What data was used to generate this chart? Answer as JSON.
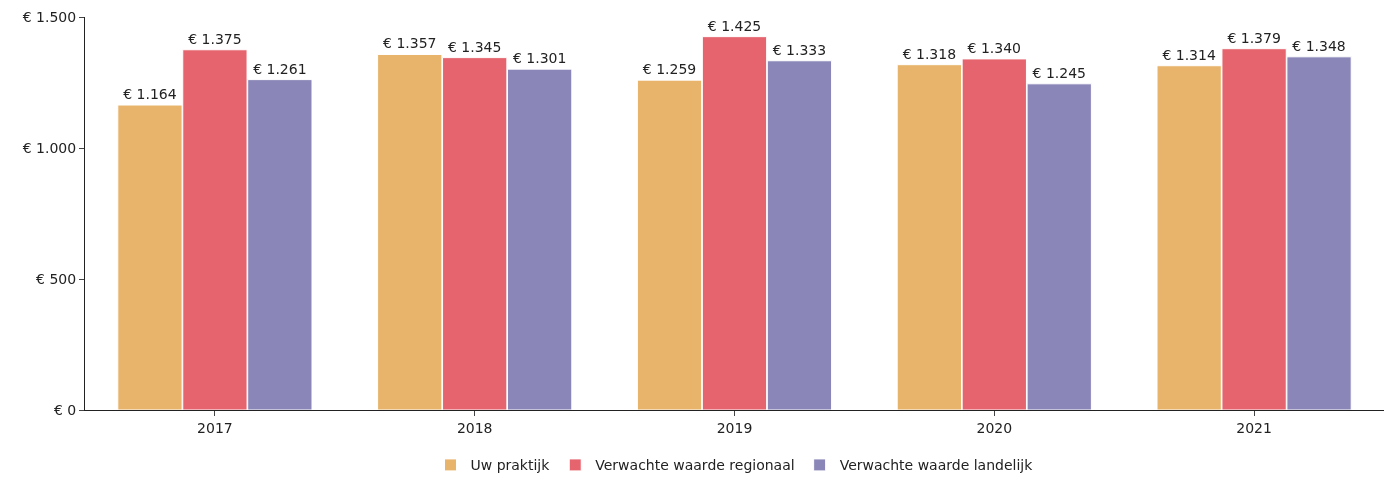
{
  "chart_data": {
    "type": "bar",
    "categories": [
      "2017",
      "2018",
      "2019",
      "2020",
      "2021"
    ],
    "series": [
      {
        "name": "Uw praktijk",
        "color": "#e8b46b",
        "values": [
          1164,
          1357,
          1259,
          1318,
          1314
        ],
        "value_labels": [
          "€ 1.164",
          "€ 1.357",
          "€ 1.259",
          "€ 1.318",
          "€ 1.314"
        ]
      },
      {
        "name": "Verwachte waarde regionaal",
        "color": "#e5646e",
        "values": [
          1375,
          1345,
          1425,
          1340,
          1379
        ],
        "value_labels": [
          "€ 1.375",
          "€ 1.345",
          "€ 1.425",
          "€ 1.340",
          "€ 1.379"
        ]
      },
      {
        "name": "Verwachte waarde landelijk",
        "color": "#8a87b8",
        "values": [
          1261,
          1301,
          1333,
          1245,
          1348
        ],
        "value_labels": [
          "€ 1.261",
          "€ 1.301",
          "€ 1.333",
          "€ 1.245",
          "€ 1.348"
        ]
      }
    ],
    "ylim": [
      0,
      1500
    ],
    "yticks": [
      {
        "value": 0,
        "label": "€ 0"
      },
      {
        "value": 500,
        "label": "€ 500"
      },
      {
        "value": 1000,
        "label": "€ 1.000"
      },
      {
        "value": 1500,
        "label": "€ 1.500"
      }
    ],
    "legend": "bottom"
  }
}
